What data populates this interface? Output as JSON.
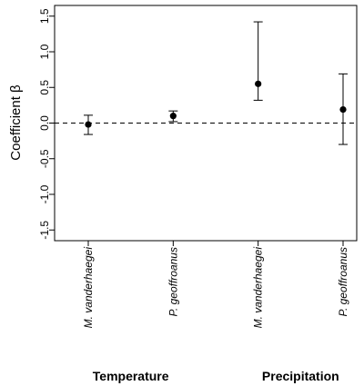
{
  "chart_data": {
    "type": "scatter",
    "title": "",
    "xlabel": "",
    "ylabel": "Coefficient β",
    "ylim": [
      -1.65,
      1.65
    ],
    "yticks": [
      -1.5,
      -1.0,
      -0.5,
      0.0,
      0.5,
      1.0,
      1.5
    ],
    "ytick_labels": [
      "-1.5",
      "-1.0",
      "-0.5",
      "0.0",
      "0.5",
      "1.0",
      "1.5"
    ],
    "reference_line": 0,
    "reference_line_style": "dashed",
    "grid": false,
    "legend": "none",
    "categories": [
      "M. vanderhaegei",
      "P. geoffroanus",
      "M. vanderhaegei",
      "P. geoffroanus"
    ],
    "points": [
      {
        "category": "M. vanderhaegei",
        "group": "Temperature",
        "estimate": -0.02,
        "lower": -0.16,
        "upper": 0.11
      },
      {
        "category": "P. geoffroanus",
        "group": "Temperature",
        "estimate": 0.1,
        "lower": 0.02,
        "upper": 0.17
      },
      {
        "category": "M. vanderhaegei",
        "group": "Precipitation",
        "estimate": 0.55,
        "lower": 0.32,
        "upper": 1.42
      },
      {
        "category": "P. geoffroanus",
        "group": "Precipitation",
        "estimate": 0.19,
        "lower": -0.3,
        "upper": 0.69
      }
    ],
    "groups": [
      "Temperature",
      "Precipitation"
    ],
    "colors": {
      "ink": "#000000",
      "background": "#ffffff"
    }
  }
}
